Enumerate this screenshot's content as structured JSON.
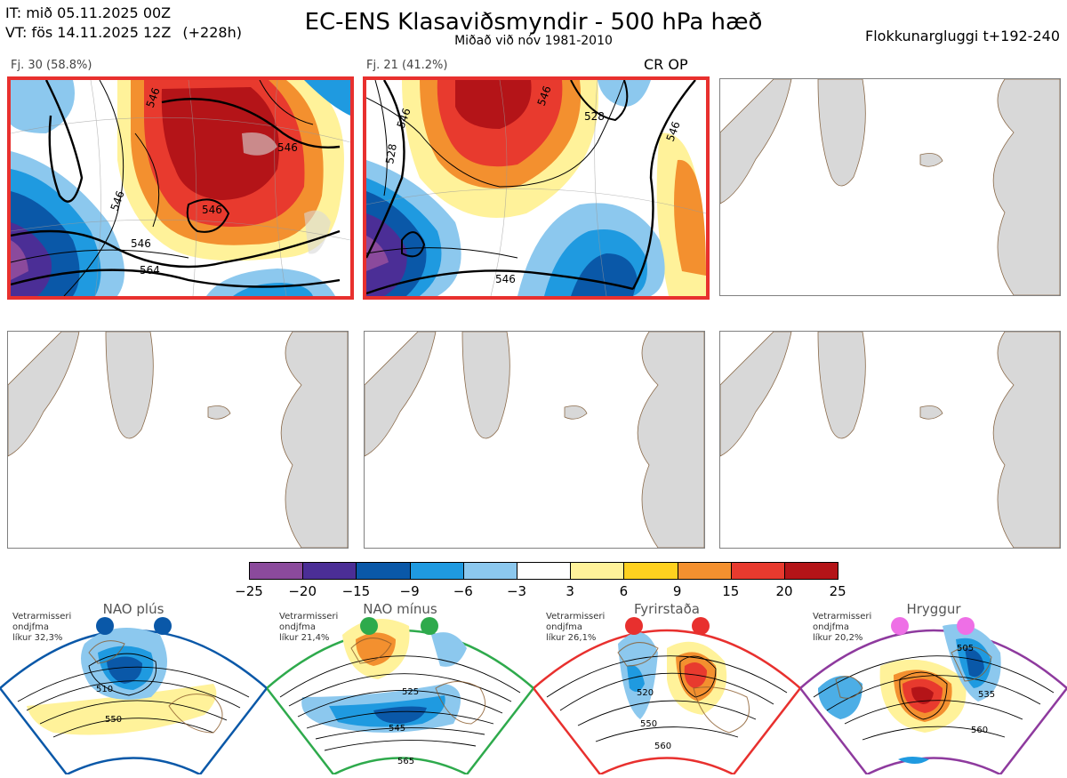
{
  "header": {
    "init_time": "IT: mið 05.11.2025 00Z",
    "valid_time": "VT: fös 14.11.2025 12Z",
    "lead": "(+228h)",
    "title": "EC-ENS Klasaviðsmyndir - 500 hPa hæð",
    "subtitle": "Miðað við nóv 1981-2010",
    "window": "Flokkunargluggi t+192-240"
  },
  "panels": [
    {
      "label": "Fj. 30 (58.8%)",
      "op": "",
      "selected": true,
      "contours": [
        "546",
        "546",
        "546",
        "546",
        "564",
        "546"
      ]
    },
    {
      "label": "Fj. 21 (41.2%)",
      "op": "CR OP",
      "selected": true,
      "contours": [
        "528",
        "546",
        "546",
        "528",
        "546",
        "546"
      ]
    },
    {
      "label": "",
      "op": "",
      "selected": false,
      "contours": []
    },
    {
      "label": "",
      "op": "",
      "selected": false,
      "contours": []
    },
    {
      "label": "",
      "op": "",
      "selected": false,
      "contours": []
    },
    {
      "label": "",
      "op": "",
      "selected": false,
      "contours": []
    }
  ],
  "colorbar": {
    "colors": [
      "#8b4a9c",
      "#4b2e96",
      "#0a58a8",
      "#1f9ae0",
      "#8cc8ee",
      "#ffffff",
      "#fff29a",
      "#ffd11f",
      "#f3902f",
      "#e83a2e",
      "#b41418"
    ],
    "ticks": [
      "−25",
      "−20",
      "−15",
      "−9",
      "−6",
      "−3",
      "3",
      "6",
      "9",
      "15",
      "20",
      "25"
    ]
  },
  "regimes": [
    {
      "title": "NAO plús",
      "note": [
        "Vetrarmisseri",
        "ondjfma",
        "líkur 32,3%"
      ],
      "color": "#0a58a8",
      "contours": [
        "510",
        "550"
      ]
    },
    {
      "title": "NAO mínus",
      "note": [
        "Vetrarmisseri",
        "ondjfma",
        "líkur 21,4%"
      ],
      "color": "#2eaa4c",
      "contours": [
        "525",
        "545",
        "565"
      ]
    },
    {
      "title": "Fyrirstaða",
      "note": [
        "Vetrarmisseri",
        "ondjfma",
        "líkur 26,1%"
      ],
      "color": "#e8302e",
      "contours": [
        "520",
        "550",
        "560"
      ]
    },
    {
      "title": "Hryggur",
      "note": [
        "Vetrarmisseri",
        "ondjfma",
        "líkur 20,2%"
      ],
      "color": "#8e3a9e",
      "contours": [
        "505",
        "535",
        "560"
      ]
    }
  ]
}
